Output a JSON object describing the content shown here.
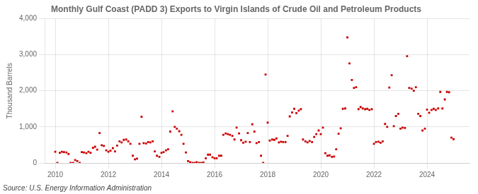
{
  "chart_data": {
    "type": "scatter",
    "title": "Monthly Gulf Coast (PADD 3) Exports to Virgin Islands of Crude Oil and Petroleum Products",
    "ylabel": "Thousand Barrels",
    "source": "Source: U.S. Energy Information Administration",
    "color": "#cc0000",
    "marker": "square",
    "grid": true,
    "xlim": [
      2009.6,
      2025.6
    ],
    "xticks": [
      2010,
      2012,
      2014,
      2016,
      2018,
      2020,
      2022,
      2024
    ],
    "ylim": [
      0,
      4000
    ],
    "yticks": [
      0,
      {
        "value": 1000,
        "label": "1,000"
      },
      {
        "value": 2000,
        "label": "2,000"
      },
      {
        "value": 3000,
        "label": "3,000"
      },
      {
        "value": 4000,
        "label": "4,000"
      }
    ],
    "x": [
      2010.0,
      2010.08,
      2010.17,
      2010.25,
      2010.33,
      2010.42,
      2010.5,
      2010.58,
      2010.67,
      2010.75,
      2010.83,
      2010.92,
      2011.0,
      2011.08,
      2011.17,
      2011.25,
      2011.33,
      2011.42,
      2011.5,
      2011.58,
      2011.67,
      2011.75,
      2011.83,
      2011.92,
      2012.0,
      2012.08,
      2012.17,
      2012.25,
      2012.33,
      2012.42,
      2012.5,
      2012.58,
      2012.67,
      2012.75,
      2012.83,
      2012.92,
      2013.0,
      2013.08,
      2013.17,
      2013.25,
      2013.33,
      2013.42,
      2013.5,
      2013.58,
      2013.67,
      2013.75,
      2013.83,
      2013.92,
      2014.0,
      2014.08,
      2014.17,
      2014.25,
      2014.33,
      2014.42,
      2014.5,
      2014.58,
      2014.67,
      2014.75,
      2014.83,
      2014.92,
      2015.0,
      2015.08,
      2015.17,
      2015.25,
      2015.33,
      2015.42,
      2015.5,
      2015.58,
      2015.67,
      2015.75,
      2015.83,
      2015.92,
      2016.0,
      2016.08,
      2016.17,
      2016.25,
      2016.33,
      2016.42,
      2016.5,
      2016.58,
      2016.67,
      2016.75,
      2016.83,
      2016.92,
      2017.0,
      2017.08,
      2017.17,
      2017.25,
      2017.33,
      2017.42,
      2017.5,
      2017.58,
      2017.67,
      2017.75,
      2017.83,
      2017.92,
      2018.0,
      2018.08,
      2018.17,
      2018.25,
      2018.33,
      2018.42,
      2018.5,
      2018.58,
      2018.67,
      2018.75,
      2018.83,
      2018.92,
      2019.0,
      2019.08,
      2019.17,
      2019.25,
      2019.33,
      2019.42,
      2019.5,
      2019.58,
      2019.67,
      2019.75,
      2019.83,
      2019.92,
      2020.0,
      2020.08,
      2020.17,
      2020.25,
      2020.33,
      2020.42,
      2020.5,
      2020.58,
      2020.67,
      2020.75,
      2020.83,
      2020.92,
      2021.0,
      2021.08,
      2021.17,
      2021.25,
      2021.33,
      2021.42,
      2021.5,
      2021.58,
      2021.67,
      2021.75,
      2021.83,
      2021.92,
      2022.0,
      2022.08,
      2022.17,
      2022.25,
      2022.33,
      2022.42,
      2022.5,
      2022.58,
      2022.67,
      2022.75,
      2022.83,
      2022.92,
      2023.0,
      2023.08,
      2023.17,
      2023.25,
      2023.33,
      2023.42,
      2023.5,
      2023.58,
      2023.67,
      2023.75,
      2023.83,
      2023.92,
      2024.0,
      2024.08,
      2024.17,
      2024.25,
      2024.33,
      2024.42,
      2024.5,
      2024.58,
      2024.67,
      2024.75,
      2024.83,
      2024.92,
      2025.0
    ],
    "values": [
      310,
      0,
      280,
      310,
      300,
      290,
      250,
      0,
      0,
      80,
      50,
      0,
      300,
      290,
      270,
      310,
      280,
      420,
      450,
      370,
      830,
      490,
      470,
      350,
      310,
      340,
      410,
      320,
      480,
      600,
      570,
      640,
      650,
      600,
      530,
      200,
      100,
      120,
      530,
      1280,
      550,
      540,
      580,
      570,
      600,
      320,
      200,
      170,
      280,
      300,
      350,
      380,
      870,
      1430,
      1000,
      950,
      880,
      780,
      530,
      290,
      50,
      20,
      0,
      0,
      20,
      0,
      0,
      10,
      130,
      230,
      230,
      160,
      130,
      130,
      200,
      200,
      780,
      820,
      800,
      780,
      750,
      650,
      980,
      820,
      630,
      560,
      590,
      830,
      580,
      1070,
      870,
      550,
      580,
      200,
      0,
      2450,
      1120,
      620,
      650,
      640,
      680,
      570,
      590,
      580,
      580,
      750,
      1290,
      1400,
      1500,
      1380,
      1450,
      1490,
      650,
      600,
      570,
      610,
      580,
      720,
      800,
      900,
      800,
      980,
      270,
      200,
      210,
      170,
      180,
      380,
      810,
      960,
      1500,
      1510,
      3480,
      2760,
      2300,
      2080,
      2100,
      1490,
      1550,
      1510,
      1490,
      1500,
      1470,
      1490,
      530,
      580,
      590,
      560,
      600,
      1080,
      1000,
      2090,
      2430,
      1020,
      1300,
      1360,
      950,
      980,
      970,
      2960,
      2080,
      2060,
      2000,
      2100,
      1360,
      1300,
      900,
      950,
      1480,
      1390,
      1470,
      1500,
      1470,
      1510,
      1970,
      1510,
      1760,
      1970,
      1960,
      700,
      660
    ]
  }
}
